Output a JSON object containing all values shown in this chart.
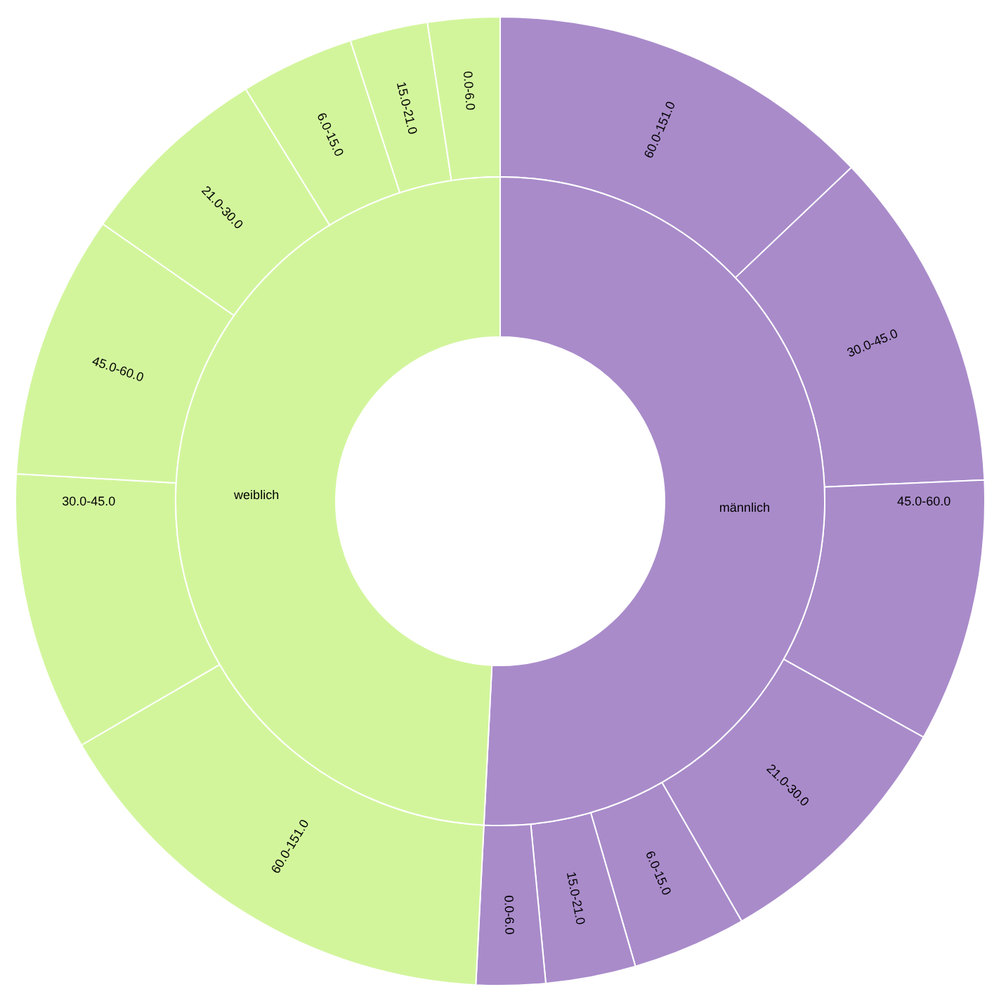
{
  "chart_data": [
    {
      "type": "donut",
      "categories": [
        "männlich",
        "weiblich"
      ],
      "values": [
        50.8,
        49.2
      ],
      "colors": [
        "#a98bca",
        "#d2f59c"
      ]
    },
    {
      "type": "donut",
      "categories": [
        "60.0-151.0",
        "30.0-45.0",
        "45.0-60.0",
        "21.0-30.0",
        "6.0-15.0",
        "15.0-21.0",
        "0.0-6.0",
        "60.0-151.0",
        "30.0-45.0",
        "45.0-60.0",
        "21.0-30.0",
        "6.0-15.0",
        "15.0-21.0",
        "0.0-6.0"
      ],
      "values": [
        12.9,
        11.4,
        8.8,
        8.6,
        3.8,
        3.0,
        2.3,
        15.8,
        9.3,
        8.8,
        6.5,
        3.8,
        2.6,
        2.4
      ],
      "colors": [
        "#a98bca",
        "#a98bca",
        "#a98bca",
        "#a98bca",
        "#a98bca",
        "#a98bca",
        "#a98bca",
        "#d2f59c",
        "#d2f59c",
        "#d2f59c",
        "#d2f59c",
        "#d2f59c",
        "#d2f59c",
        "#d2f59c"
      ]
    }
  ]
}
